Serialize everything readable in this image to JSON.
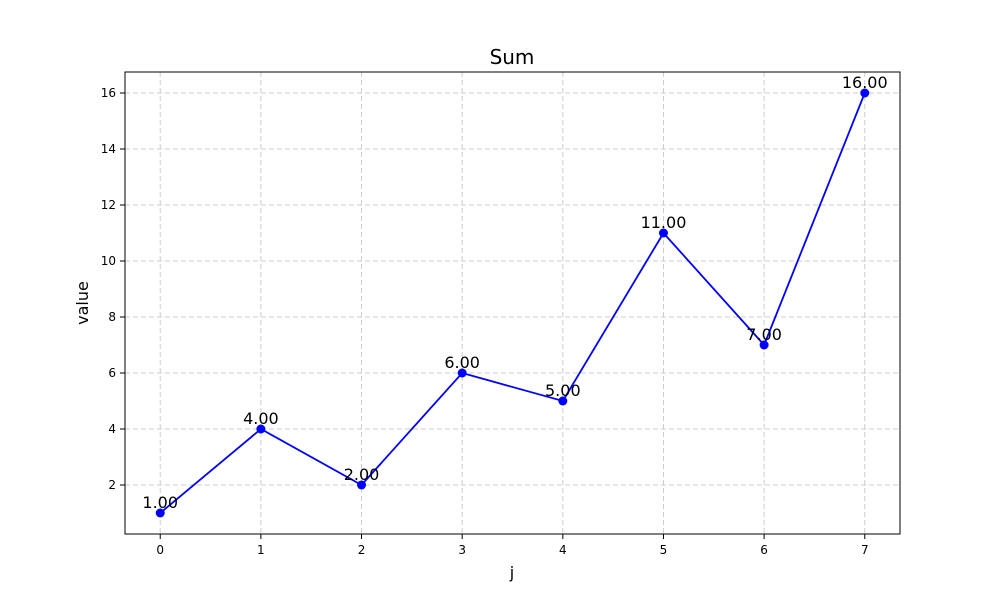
{
  "chart_data": {
    "type": "line",
    "title": "Sum",
    "xlabel": "j",
    "ylabel": "value",
    "x": [
      0,
      1,
      2,
      3,
      4,
      5,
      6,
      7
    ],
    "x_ticks": [
      "0",
      "1",
      "2",
      "3",
      "4",
      "5",
      "6",
      "7"
    ],
    "y_ticks": [
      "2",
      "4",
      "6",
      "8",
      "10",
      "12",
      "14",
      "16"
    ],
    "xlim": [
      -0.35,
      7.35
    ],
    "ylim": [
      0.25,
      16.75
    ],
    "grid": true,
    "series": [
      {
        "color": "#0000ff",
        "marker": "circle",
        "values": [
          1,
          4,
          2,
          6,
          5,
          11,
          7,
          16
        ],
        "labels": [
          "1.00",
          "4.00",
          "2.00",
          "6.00",
          "5.00",
          "11.00",
          "7.00",
          "16.00"
        ]
      }
    ]
  }
}
